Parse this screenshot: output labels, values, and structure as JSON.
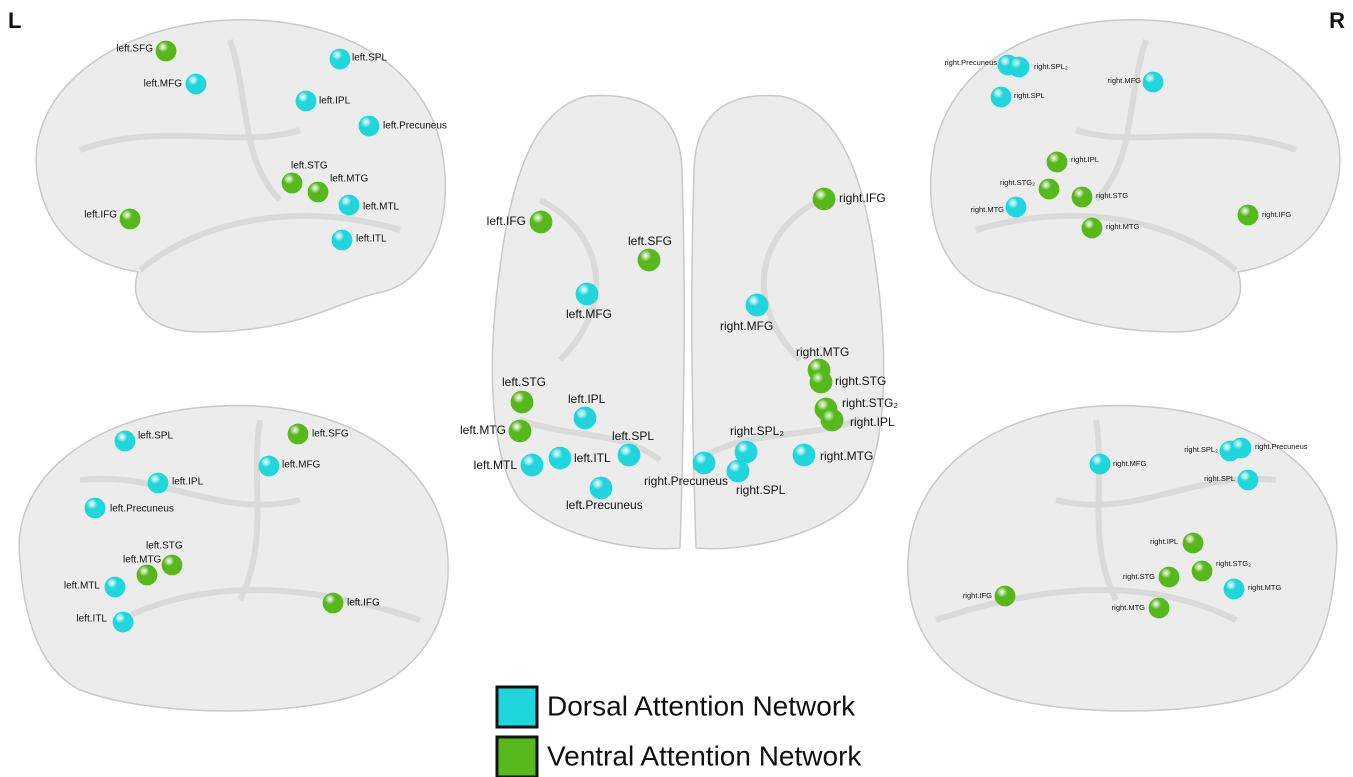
{
  "corner_labels": {
    "left": "L",
    "right": "R"
  },
  "legend": [
    {
      "label": "Dorsal Attention Network",
      "color": "#1ed6dc"
    },
    {
      "label": "Ventral Attention Network",
      "color": "#56b81a"
    }
  ],
  "views": [
    {
      "nodes": [
        {
          "label": "left.SFG",
          "network": 1
        },
        {
          "label": "left.SPL",
          "network": 0
        },
        {
          "label": "left.MFG",
          "network": 0
        },
        {
          "label": "left.IPL",
          "network": 0
        },
        {
          "label": "left.Precuneus",
          "network": 0
        },
        {
          "label": "left.STG",
          "network": 1
        },
        {
          "label": "left.MTG",
          "network": 1
        },
        {
          "label": "left.MTL",
          "network": 0
        },
        {
          "label": "left.IFG",
          "network": 1
        },
        {
          "label": "left.ITL",
          "network": 0
        }
      ]
    },
    {
      "nodes": [
        {
          "label": "left.IFG",
          "network": 1
        },
        {
          "label": "right.IFG",
          "network": 1
        },
        {
          "label": "left.SFG",
          "network": 1
        },
        {
          "label": "left.MFG",
          "network": 0
        },
        {
          "label": "right.MFG",
          "network": 0
        },
        {
          "label": "right.MTG",
          "network": 1
        },
        {
          "label": "right.STG",
          "network": 1
        },
        {
          "label": "left.STG",
          "network": 1
        },
        {
          "label": "right.STG₂",
          "network": 1
        },
        {
          "label": "right.IPL",
          "network": 1
        },
        {
          "label": "left.IPL",
          "network": 0
        },
        {
          "label": "left.MTG",
          "network": 1
        },
        {
          "label": "left.SPL",
          "network": 0
        },
        {
          "label": "right.SPL₂",
          "network": 0
        },
        {
          "label": "right.MTG",
          "network": 0
        },
        {
          "label": "left.MTL",
          "network": 0
        },
        {
          "label": "left.ITL",
          "network": 0
        },
        {
          "label": "right.Precuneus",
          "network": 0
        },
        {
          "label": "right.SPL",
          "network": 0
        },
        {
          "label": "left.Precuneus",
          "network": 0
        }
      ]
    },
    {
      "nodes": [
        {
          "label": "right.Precuneus",
          "network": 0
        },
        {
          "label": "right.SPL₂",
          "network": 0
        },
        {
          "label": "right.MFG",
          "network": 0
        },
        {
          "label": "right.SPL",
          "network": 0
        },
        {
          "label": "right.IPL",
          "network": 1
        },
        {
          "label": "right.STG₂",
          "network": 1
        },
        {
          "label": "right.STG",
          "network": 1
        },
        {
          "label": "right.MTG",
          "network": 0
        },
        {
          "label": "right.IFG",
          "network": 1
        },
        {
          "label": "right.MTG",
          "network": 1
        }
      ]
    },
    {
      "nodes": [
        {
          "label": "left.SPL",
          "network": 0
        },
        {
          "label": "left.SFG",
          "network": 1
        },
        {
          "label": "left.MFG",
          "network": 0
        },
        {
          "label": "left.IPL",
          "network": 0
        },
        {
          "label": "left.Precuneus",
          "network": 0
        },
        {
          "label": "left.STG",
          "network": 1
        },
        {
          "label": "left.MTG",
          "network": 1
        },
        {
          "label": "left.MTL",
          "network": 0
        },
        {
          "label": "left.IFG",
          "network": 1
        },
        {
          "label": "left.ITL",
          "network": 0
        }
      ]
    },
    {
      "nodes": [
        {
          "label": "right.SPL₂",
          "network": 0
        },
        {
          "label": "right.Precuneus",
          "network": 0
        },
        {
          "label": "right.MFG",
          "network": 0
        },
        {
          "label": "right.SPL",
          "network": 0
        },
        {
          "label": "right.IPL",
          "network": 1
        },
        {
          "label": "right.STG₂",
          "network": 1
        },
        {
          "label": "right.STG",
          "network": 1
        },
        {
          "label": "right.MTG",
          "network": 0
        },
        {
          "label": "right.IFG",
          "network": 1
        },
        {
          "label": "right.MTG",
          "network": 1
        }
      ]
    }
  ]
}
